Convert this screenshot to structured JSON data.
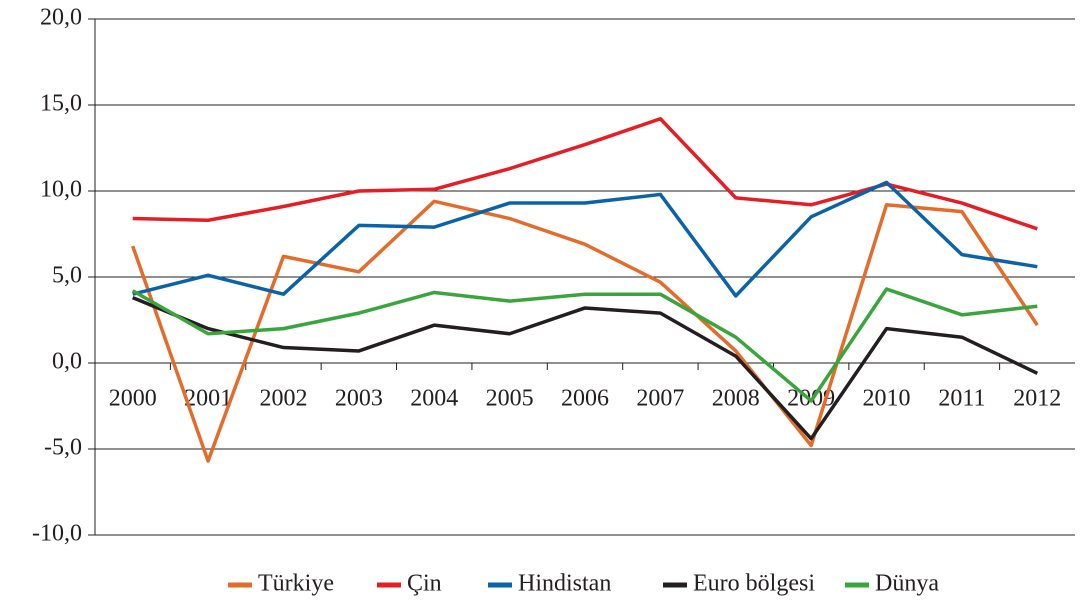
{
  "chart_data": {
    "type": "line",
    "categories": [
      "2000",
      "2001",
      "2002",
      "2003",
      "2004",
      "2005",
      "2006",
      "2007",
      "2008",
      "2009",
      "2010",
      "2011",
      "2012"
    ],
    "series": [
      {
        "name": "Türkiye",
        "color": "#e46c2a",
        "values": [
          6.8,
          -5.7,
          6.2,
          5.3,
          9.4,
          8.4,
          6.9,
          4.7,
          0.7,
          -4.8,
          9.2,
          8.8,
          2.2
        ]
      },
      {
        "name": "Çin",
        "color": "#e31e24",
        "values": [
          8.4,
          8.3,
          9.1,
          10.0,
          10.1,
          11.3,
          12.7,
          14.2,
          9.6,
          9.2,
          10.4,
          9.3,
          7.8
        ]
      },
      {
        "name": "Hindistan",
        "color": "#0a63a8",
        "values": [
          4.0,
          5.1,
          4.0,
          8.0,
          7.9,
          9.3,
          9.3,
          9.8,
          3.9,
          8.5,
          10.5,
          6.3,
          5.6
        ]
      },
      {
        "name": "Euro bölgesi",
        "color": "#231f20",
        "values": [
          3.8,
          2.0,
          0.9,
          0.7,
          2.2,
          1.7,
          3.2,
          2.9,
          0.4,
          -4.4,
          2.0,
          1.5,
          -0.6
        ]
      },
      {
        "name": "Dünya",
        "color": "#3aa53d",
        "values": [
          4.2,
          1.7,
          2.0,
          2.9,
          4.1,
          3.6,
          4.0,
          4.0,
          1.5,
          -2.2,
          4.3,
          2.8,
          3.3
        ]
      }
    ],
    "ylim": [
      -10,
      20
    ],
    "yticks": [
      {
        "value": -10,
        "label": "-10,0"
      },
      {
        "value": -5,
        "label": "-5,0"
      },
      {
        "value": 0,
        "label": "0,0"
      },
      {
        "value": 5,
        "label": "5,0"
      },
      {
        "value": 10,
        "label": "10,0"
      },
      {
        "value": 15,
        "label": "15,0"
      },
      {
        "value": 20,
        "label": "20,0"
      }
    ],
    "grid": true,
    "legend": "bottom"
  }
}
